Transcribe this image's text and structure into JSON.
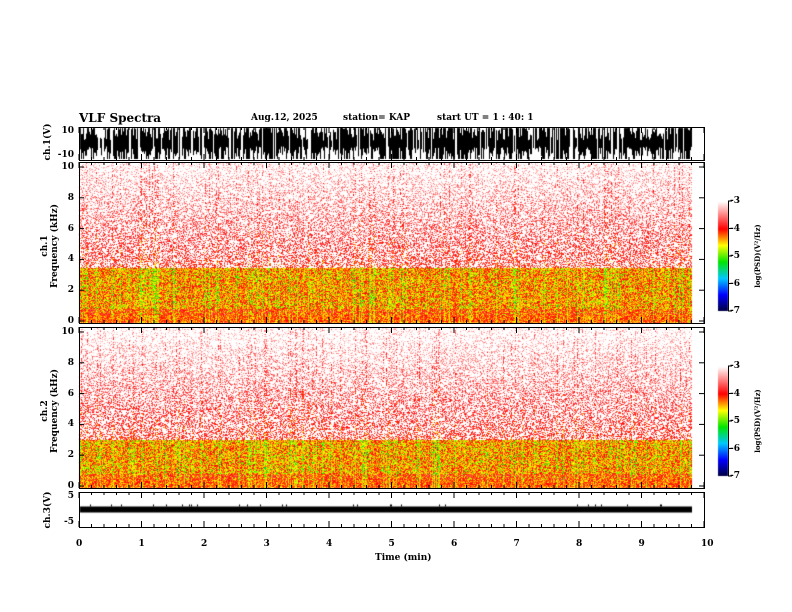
{
  "header": {
    "title": "VLF Spectra",
    "date": "Aug.12, 2025",
    "station": "station= KAP",
    "start": "start  UT =   1 : 40: 1"
  },
  "panels": {
    "ch1": {
      "ylabel": "ch.1(V)",
      "ticks": [
        "10",
        "-10"
      ]
    },
    "spec1": {
      "ylabel1": "ch.1",
      "ylabel2": "Frequency (kHz)",
      "ticks": [
        "0",
        "2",
        "4",
        "6",
        "8",
        "10"
      ]
    },
    "spec2": {
      "ylabel1": "ch.2",
      "ylabel2": "Frequency (kHz)",
      "ticks": [
        "0",
        "2",
        "4",
        "6",
        "8",
        "10"
      ]
    },
    "ch3": {
      "ylabel": "ch.3(V)",
      "ticks": [
        "5",
        "-5"
      ]
    }
  },
  "colorbar": {
    "label": "log(PSD)(V²/Hz)",
    "ticks": [
      "-3",
      "-4",
      "-5",
      "-6",
      "-7"
    ]
  },
  "chart_data": {
    "type": "heatmap",
    "title": "VLF Spectra",
    "xlabel": "Time (min)",
    "xlim": [
      0,
      10
    ],
    "xticks": [
      "0",
      "1",
      "2",
      "3",
      "4",
      "5",
      "6",
      "7",
      "8",
      "9",
      "10"
    ],
    "data_end_min": 9.8,
    "spectrograms": [
      {
        "name": "ch.1",
        "ylabel": "Frequency (kHz)",
        "ylim": [
          0,
          10
        ],
        "strong_band_khz": [
          0.5,
          3.5
        ],
        "clim": [
          -7,
          -3
        ]
      },
      {
        "name": "ch.2",
        "ylabel": "Frequency (kHz)",
        "ylim": [
          0,
          10
        ],
        "strong_band_khz": [
          0.5,
          3.0
        ],
        "clim": [
          -7,
          -3
        ]
      }
    ],
    "waveforms": [
      {
        "name": "ch.1(V)",
        "ylim": [
          -10,
          10
        ]
      },
      {
        "name": "ch.3(V)",
        "ylim": [
          -5,
          5
        ],
        "level": 0
      }
    ]
  }
}
